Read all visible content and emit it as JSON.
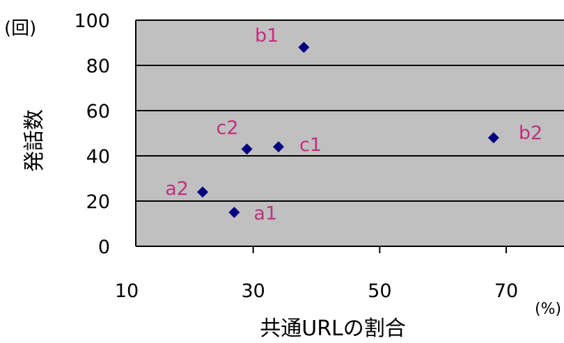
{
  "chart_data": {
    "type": "scatter",
    "xlabel": "共通URLの割合",
    "ylabel": "発話数",
    "x_unit": "(%)",
    "y_unit": "(回)",
    "xlim": [
      10,
      80
    ],
    "ylim": [
      0,
      100
    ],
    "x_ticks": [
      10,
      30,
      50,
      70
    ],
    "y_ticks": [
      0,
      20,
      40,
      60,
      80,
      100
    ],
    "grid": "horizontal",
    "plot_background": "#c0c0c0",
    "marker": "diamond",
    "marker_color": "#000080",
    "label_color": "#c0307f",
    "points": [
      {
        "label": "b1",
        "x": 38,
        "y": 88
      },
      {
        "label": "b2",
        "x": 68,
        "y": 48
      },
      {
        "label": "c2",
        "x": 29,
        "y": 43
      },
      {
        "label": "c1",
        "x": 34,
        "y": 44
      },
      {
        "label": "a2",
        "x": 22,
        "y": 24
      },
      {
        "label": "a1",
        "x": 27,
        "y": 15
      }
    ]
  }
}
